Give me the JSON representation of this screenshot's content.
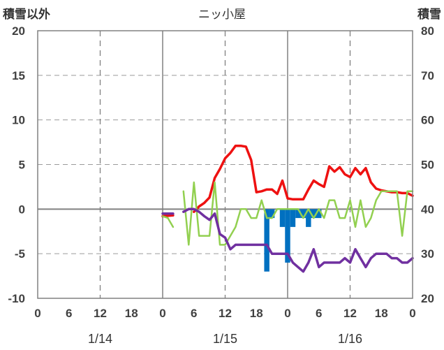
{
  "header": {
    "left_title": "積雪以外",
    "center_title": "ニッ小屋",
    "right_title": "積雪"
  },
  "chart_data": {
    "type": "line",
    "title": "ニッ小屋",
    "x_unit": "hours since 1/14 00:00",
    "xlim": [
      0,
      72
    ],
    "x_tick_hours": [
      0,
      6,
      12,
      18,
      24,
      30,
      36,
      42,
      48,
      54,
      60,
      66,
      72
    ],
    "x_tick_labels": [
      "0",
      "6",
      "12",
      "18",
      "0",
      "6",
      "12",
      "18",
      "0",
      "6",
      "12",
      "18",
      "0"
    ],
    "date_labels": [
      {
        "hour": 12,
        "label": "1/14"
      },
      {
        "hour": 36,
        "label": "1/15"
      },
      {
        "hour": 60,
        "label": "1/16"
      }
    ],
    "y_left": {
      "label": "積雪以外",
      "lim": [
        -10,
        20
      ],
      "ticks": [
        -10,
        -5,
        0,
        5,
        10,
        15,
        20
      ]
    },
    "y_right": {
      "label": "積雪",
      "lim": [
        20,
        80
      ],
      "ticks": [
        20,
        30,
        40,
        50,
        60,
        70,
        80
      ]
    },
    "grid": "dashed vertical every 12h",
    "series": [
      {
        "key": "red",
        "color": "#ee1111",
        "axis": "left",
        "line_width": 3.5,
        "x": [
          24,
          26,
          28,
          30,
          31,
          32,
          33,
          34,
          35,
          36,
          37,
          38,
          39,
          40,
          41,
          42,
          43,
          44,
          45,
          46,
          47,
          48,
          49,
          50,
          51,
          52,
          53,
          54,
          55,
          56,
          57,
          58,
          59,
          60,
          61,
          62,
          63,
          64,
          65,
          66,
          67,
          68,
          69,
          70,
          71,
          72,
          73
        ],
        "y": [
          -0.8,
          -0.7,
          null,
          -0.3,
          0.3,
          0.7,
          1.3,
          3.5,
          4.5,
          5.7,
          6.3,
          7.1,
          7.1,
          7.0,
          5.5,
          1.9,
          2.0,
          2.2,
          2.2,
          1.7,
          3.2,
          1.2,
          1.1,
          1.1,
          1.1,
          2.2,
          3.2,
          2.8,
          2.5,
          4.8,
          4.2,
          4.7,
          3.9,
          3.6,
          4.6,
          3.9,
          4.6,
          3.0,
          2.3,
          2.1,
          2.0,
          1.9,
          1.9,
          1.8,
          1.8,
          1.5,
          null
        ]
      },
      {
        "key": "green",
        "color": "#92d050",
        "axis": "left",
        "line_width": 2.5,
        "x": [
          24,
          25,
          26,
          27,
          28,
          29,
          30,
          31,
          32,
          33,
          34,
          35,
          36,
          37,
          38,
          39,
          40,
          41,
          42,
          43,
          44,
          45,
          46,
          47,
          48,
          49,
          50,
          51,
          52,
          53,
          54,
          55,
          56,
          57,
          58,
          59,
          60,
          61,
          62,
          63,
          64,
          65,
          66,
          67,
          68,
          69,
          70,
          71,
          72,
          73
        ],
        "y": [
          -0.8,
          -1.0,
          -2.0,
          null,
          2.0,
          -4.0,
          3.0,
          -3.0,
          -3.0,
          -3.0,
          3.0,
          -4.0,
          -4.0,
          -3.0,
          -2.0,
          0.0,
          0.0,
          -1.0,
          -1.0,
          1.0,
          -1.0,
          -1.0,
          0.0,
          0.0,
          0.0,
          0.0,
          0.0,
          -1.0,
          0.0,
          -1.0,
          0.0,
          -1.0,
          1.0,
          1.0,
          -1.0,
          -1.0,
          1.0,
          -2.0,
          1.0,
          -2.0,
          -1.0,
          1.0,
          2.0,
          2.0,
          2.0,
          2.0,
          -3.0,
          2.0,
          2.0,
          null
        ]
      },
      {
        "key": "purple",
        "color": "#7030a0",
        "axis": "left",
        "line_width": 3.5,
        "x": [
          24,
          25,
          26,
          27,
          28,
          29,
          30,
          31,
          32,
          33,
          34,
          35,
          36,
          37,
          38,
          39,
          40,
          41,
          42,
          43,
          44,
          45,
          46,
          47,
          48,
          49,
          50,
          51,
          52,
          53,
          54,
          55,
          56,
          57,
          58,
          59,
          60,
          61,
          62,
          63,
          64,
          65,
          66,
          67,
          68,
          69,
          70,
          71,
          72,
          73
        ],
        "y": [
          -0.5,
          -0.5,
          -0.5,
          null,
          -0.3,
          0.0,
          0.0,
          -0.3,
          -0.8,
          -1.2,
          -0.5,
          -2.8,
          -3.2,
          -4.5,
          -4.0,
          -4.0,
          -4.0,
          -4.0,
          -4.0,
          -4.0,
          -4.0,
          -5.0,
          -5.0,
          -5.0,
          -5.0,
          -6.0,
          -6.5,
          -7.0,
          -6.0,
          -4.5,
          -6.5,
          -6.0,
          -6.0,
          -6.0,
          -6.0,
          -5.5,
          -6.0,
          -4.5,
          -5.5,
          -6.5,
          -5.5,
          -5.0,
          -5.0,
          -5.0,
          -5.5,
          -5.5,
          -6.0,
          -6.0,
          -5.5,
          null
        ]
      }
    ],
    "bars": {
      "key": "snow_depth",
      "color": "#0070c0",
      "axis": "right",
      "x": [
        44,
        45,
        46,
        47,
        48,
        49,
        50,
        51,
        52,
        53,
        54
      ],
      "values": [
        26,
        38,
        40,
        36,
        28,
        36,
        38,
        38,
        36,
        38,
        38
      ]
    }
  }
}
